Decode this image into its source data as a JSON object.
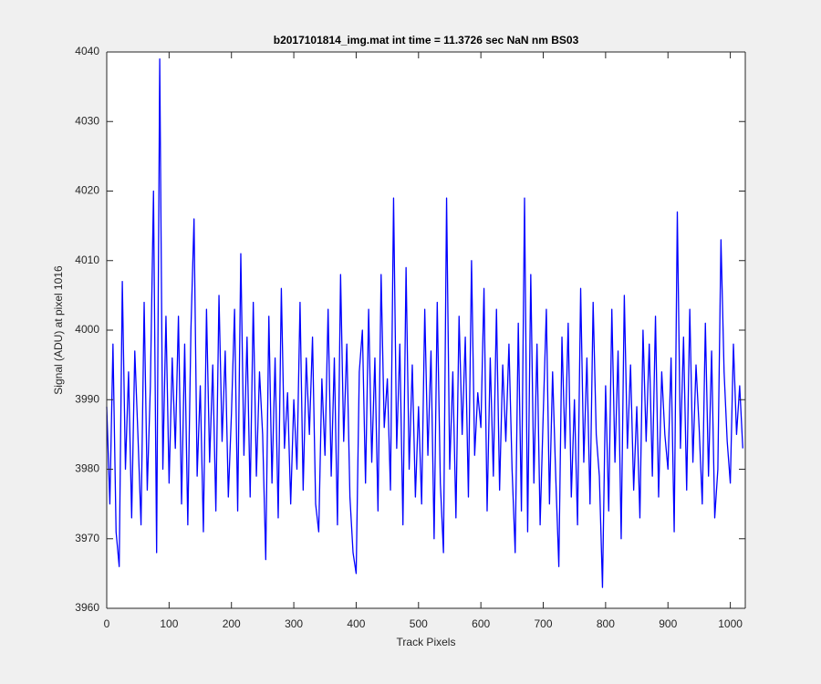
{
  "chart_data": {
    "type": "line",
    "title": "b2017101814_img.mat int time = 11.3726 sec  NaN nm BS03",
    "x_label": "Track Pixels",
    "y_label": "Signal (ADU) at pixel 1016",
    "xlim": [
      0,
      1024
    ],
    "ylim": [
      3960,
      4040
    ],
    "xticks": [
      0,
      100,
      200,
      300,
      400,
      500,
      600,
      700,
      800,
      900,
      1000
    ],
    "yticks": [
      3960,
      3970,
      3980,
      3990,
      4000,
      4010,
      4020,
      4030,
      4040
    ],
    "x": [
      0,
      5,
      10,
      15,
      20,
      25,
      30,
      35,
      40,
      45,
      50,
      55,
      60,
      65,
      70,
      75,
      80,
      85,
      90,
      95,
      100,
      105,
      110,
      115,
      120,
      125,
      130,
      135,
      140,
      145,
      150,
      155,
      160,
      165,
      170,
      175,
      180,
      185,
      190,
      195,
      200,
      205,
      210,
      215,
      220,
      225,
      230,
      235,
      240,
      245,
      250,
      255,
      260,
      265,
      270,
      275,
      280,
      285,
      290,
      295,
      300,
      305,
      310,
      315,
      320,
      325,
      330,
      335,
      340,
      345,
      350,
      355,
      360,
      365,
      370,
      375,
      380,
      385,
      390,
      395,
      400,
      405,
      410,
      415,
      420,
      425,
      430,
      435,
      440,
      445,
      450,
      455,
      460,
      465,
      470,
      475,
      480,
      485,
      490,
      495,
      500,
      505,
      510,
      515,
      520,
      525,
      530,
      535,
      540,
      545,
      550,
      555,
      560,
      565,
      570,
      575,
      580,
      585,
      590,
      595,
      600,
      605,
      610,
      615,
      620,
      625,
      630,
      635,
      640,
      645,
      650,
      655,
      660,
      665,
      670,
      675,
      680,
      685,
      690,
      695,
      700,
      705,
      710,
      715,
      720,
      725,
      730,
      735,
      740,
      745,
      750,
      755,
      760,
      765,
      770,
      775,
      780,
      785,
      790,
      795,
      800,
      805,
      810,
      815,
      820,
      825,
      830,
      835,
      840,
      845,
      850,
      855,
      860,
      865,
      870,
      875,
      880,
      885,
      890,
      895,
      900,
      905,
      910,
      915,
      920,
      925,
      930,
      935,
      940,
      945,
      950,
      955,
      960,
      965,
      970,
      975,
      980,
      985,
      990,
      995,
      1000,
      1005,
      1010,
      1015,
      1020
    ],
    "series": [
      {
        "color": "#0000ff",
        "values": [
          3989,
          3975,
          3998,
          3971,
          3966,
          4007,
          3980,
          3994,
          3973,
          3997,
          3985,
          3972,
          4004,
          3977,
          3992,
          4020,
          3968,
          4039,
          3980,
          4002,
          3978,
          3996,
          3983,
          4002,
          3975,
          3998,
          3972,
          4000,
          4016,
          3979,
          3992,
          3971,
          4003,
          3981,
          3995,
          3974,
          4005,
          3984,
          3997,
          3976,
          3988,
          4003,
          3974,
          4011,
          3982,
          3999,
          3976,
          4004,
          3979,
          3994,
          3985,
          3967,
          4002,
          3978,
          3996,
          3973,
          4006,
          3983,
          3991,
          3975,
          3990,
          3980,
          4004,
          3977,
          3996,
          3985,
          3999,
          3975,
          3971,
          3993,
          3982,
          4003,
          3979,
          3996,
          3972,
          4008,
          3984,
          3998,
          3976,
          3968,
          3965,
          3994,
          4000,
          3978,
          4003,
          3981,
          3996,
          3974,
          4008,
          3986,
          3993,
          3977,
          4019,
          3983,
          3998,
          3972,
          4009,
          3980,
          3995,
          3976,
          3989,
          3975,
          4003,
          3982,
          3997,
          3970,
          4004,
          3978,
          3968,
          4019,
          3980,
          3994,
          3973,
          4002,
          3985,
          3999,
          3976,
          4010,
          3982,
          3991,
          3986,
          4006,
          3974,
          3996,
          3979,
          4003,
          3977,
          3995,
          3984,
          3998,
          3980,
          3968,
          4001,
          3974,
          4019,
          3971,
          4008,
          3978,
          3998,
          3972,
          3988,
          4003,
          3975,
          3994,
          3979,
          3966,
          3999,
          3983,
          4001,
          3976,
          3990,
          3972,
          4006,
          3981,
          3996,
          3975,
          4004,
          3985,
          3979,
          3963,
          3992,
          3974,
          4003,
          3981,
          3997,
          3970,
          4005,
          3983,
          3995,
          3977,
          3989,
          3973,
          4000,
          3984,
          3998,
          3979,
          4002,
          3976,
          3994,
          3985,
          3980,
          3996,
          3971,
          4017,
          3983,
          3999,
          3977,
          4003,
          3981,
          3995,
          3986,
          3975,
          4001,
          3979,
          3997,
          3973,
          3980,
          4013,
          3994,
          3984,
          3978,
          3998,
          3985,
          3992,
          3983
        ]
      }
    ]
  }
}
